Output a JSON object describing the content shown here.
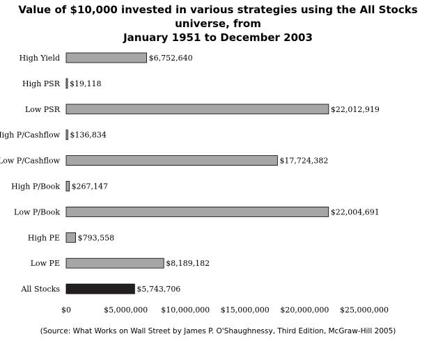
{
  "chart_data": {
    "type": "bar",
    "orientation": "horizontal",
    "title_line1": "Value of $10,000 invested in various strategies using the All Stocks universe, from",
    "title_line2": "January 1951 to December 2003",
    "categories": [
      "High Yield",
      "High PSR",
      "Low PSR",
      "High P/Cashflow",
      "Low P/Cashflow",
      "High P/Book",
      "Low P/Book",
      "High PE",
      "Low PE",
      "All Stocks"
    ],
    "values": [
      6752640,
      19118,
      22012919,
      136834,
      17724382,
      267147,
      22004691,
      793558,
      8189182,
      5743706
    ],
    "value_labels": [
      "$6,752,640",
      "$19,118",
      "$22,012,919",
      "$136,834",
      "$17,724,382",
      "$267,147",
      "$22,004,691",
      "$793,558",
      "$8,189,182",
      "$5,743,706"
    ],
    "highlight_category": "All Stocks",
    "xlim": [
      0,
      25000000
    ],
    "x_ticks": [
      0,
      5000000,
      10000000,
      15000000,
      20000000,
      25000000
    ],
    "x_tick_labels": [
      "$0",
      "$5,000,000",
      "$10,000,000",
      "$15,000,000",
      "$20,000,000",
      "$25,000,000"
    ],
    "xlabel": "",
    "ylabel": "",
    "grid": false,
    "colors": {
      "bar": "#a6a6a6",
      "highlight": "#231f20",
      "stroke": "#000000"
    }
  },
  "source": "(Source: What Works on Wall Street by James P. O'Shaughnessy, Third Edition, McGraw-Hill 2005)"
}
